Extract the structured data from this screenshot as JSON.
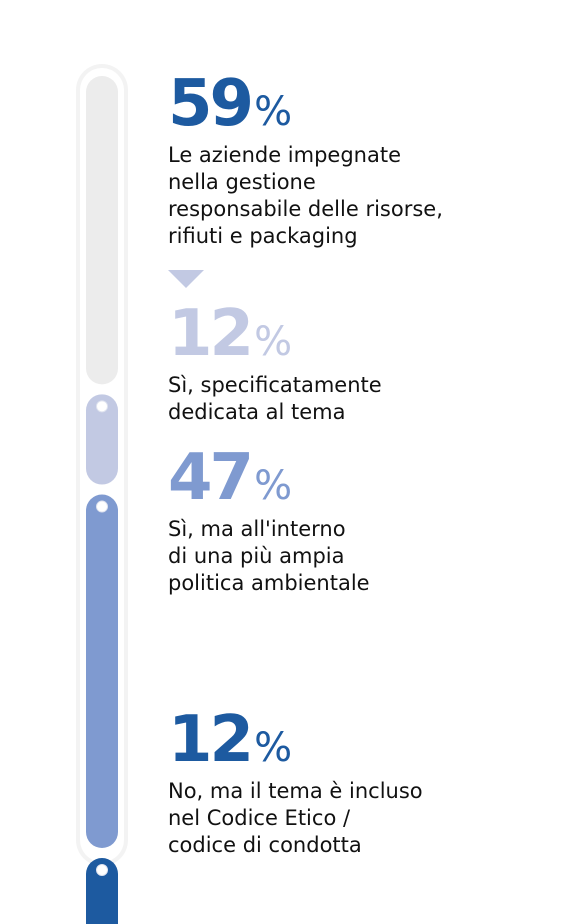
{
  "chart_data": {
    "type": "bar",
    "orientation": "vertical-stacked-gauge",
    "total": {
      "value": 59,
      "unit": "%",
      "label": "Le aziende impegnate\nnella gestione\nresponsabile delle risorse,\nrifiuti e packaging"
    },
    "categories": [
      "Sì, specificatamente\ndedicata al tema",
      "Sì, ma all'interno\ndi una più ampia\npolitica ambientale",
      "No, ma il tema è incluso\nnel Codice Etico /\ncodice di condotta"
    ],
    "values": [
      12,
      47,
      12
    ],
    "unit": "%",
    "colors": {
      "remainder": "#ececec",
      "specific": "#c2c9e3",
      "environmental": "#7f9ad0",
      "code": "#1d5aa0",
      "total_number": "#1d5aa0",
      "track": "#f3f3f3"
    }
  },
  "stats": [
    {
      "num": "59",
      "pct": "%",
      "color": "#1d5aa0"
    },
    {
      "num": "12",
      "pct": "%",
      "color": "#c2c9e3"
    },
    {
      "num": "47",
      "pct": "%",
      "color": "#7f9ad0"
    },
    {
      "num": "12",
      "pct": "%",
      "color": "#1d5aa0"
    }
  ]
}
